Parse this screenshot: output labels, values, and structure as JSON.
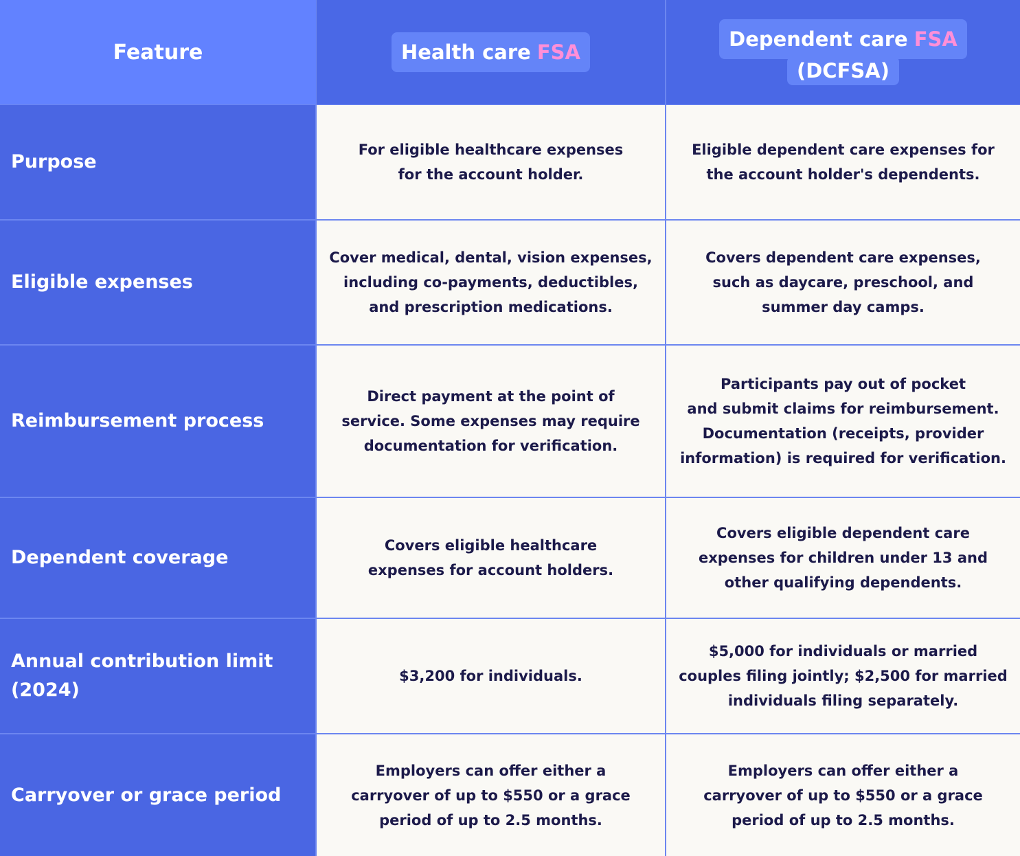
{
  "table": {
    "header": {
      "feature": "Feature",
      "columns": [
        {
          "text": "Health care",
          "highlight": "FSA"
        },
        {
          "text": "Dependent care",
          "highlight": "FSA",
          "suffix": "(DCFSA)"
        }
      ]
    },
    "rows": [
      {
        "label": [
          "Purpose"
        ],
        "cells": [
          {
            "lines": [
              "For eligible healthcare expenses",
              "for the account holder."
            ]
          },
          {
            "lines": [
              "Eligible dependent care expenses for",
              "the account holder's dependents."
            ]
          }
        ]
      },
      {
        "label": [
          "Eligible expenses"
        ],
        "cells": [
          {
            "lines": [
              "Cover medical, dental, vision expenses,",
              "including co-payments, deductibles,",
              "and prescription medications."
            ]
          },
          {
            "lines": [
              "Covers dependent care expenses,",
              "such as daycare, preschool, and",
              "summer day camps."
            ]
          }
        ]
      },
      {
        "label": [
          "Reimbursement process"
        ],
        "cells": [
          {
            "lines": [
              "Direct payment at the point of",
              "service. Some expenses may require",
              "documentation for verification."
            ]
          },
          {
            "lines": [
              "Participants pay out of pocket",
              "and submit claims for reimbursement.",
              "Documentation (receipts, provider",
              "information) is required for verification."
            ]
          }
        ]
      },
      {
        "label": [
          "Dependent coverage"
        ],
        "cells": [
          {
            "lines": [
              "Covers eligible healthcare",
              "expenses for account holders."
            ]
          },
          {
            "lines": [
              "Covers eligible dependent care",
              "expenses for children under 13 and",
              "other qualifying dependents."
            ]
          }
        ]
      },
      {
        "label": [
          "Annual contribution limit",
          "(2024)"
        ],
        "cells": [
          {
            "lines": [
              "$3,200 for individuals."
            ]
          },
          {
            "lines": [
              "$5,000 for individuals or married",
              "couples filing jointly; $2,500 for married",
              "individuals filing separately."
            ]
          }
        ]
      },
      {
        "label": [
          "Carryover or grace period"
        ],
        "cells": [
          {
            "lines": [
              "Employers can offer either a",
              "carryover of up to $550 or a grace",
              "period of up to 2.5 months."
            ]
          },
          {
            "lines": [
              "Employers can offer either a",
              "carryover of up to $550 or a grace",
              "period of up to 2.5 months."
            ]
          }
        ]
      }
    ]
  }
}
